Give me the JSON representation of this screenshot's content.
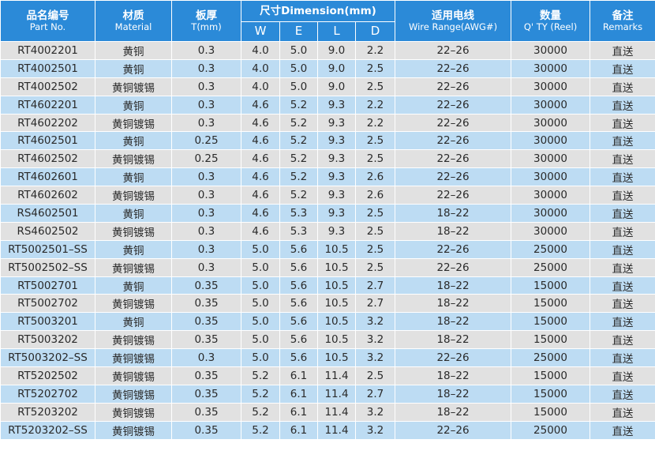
{
  "headers": {
    "part_no": {
      "zh": "品名编号",
      "en": "Part No."
    },
    "material": {
      "zh": "材质",
      "en": "Material"
    },
    "thickness": {
      "zh": "板厚",
      "en": "T(mm)"
    },
    "dimension": {
      "label": "尺寸Dimension(mm)",
      "sub": [
        "W",
        "E",
        "L",
        "D"
      ]
    },
    "wire_range": {
      "zh": "适用电线",
      "en": "Wire Range(AWG#)"
    },
    "qty": {
      "zh": "数量",
      "en": "Q' TY (Reel)"
    },
    "remarks": {
      "zh": "备注",
      "en": "Remarks"
    }
  },
  "colors": {
    "header_bg": "#2b8ad8",
    "row_gray": "#e1e1e1",
    "row_blue": "#bddcf3"
  },
  "rows": [
    [
      "RT4002201",
      "黄铜",
      "0.3",
      "4.0",
      "5.0",
      "9.0",
      "2.2",
      "22–26",
      "30000",
      "直送"
    ],
    [
      "RT4002501",
      "黄铜",
      "0.3",
      "4.0",
      "5.0",
      "9.0",
      "2.5",
      "22–26",
      "30000",
      "直送"
    ],
    [
      "RT4002502",
      "黄铜镀锡",
      "0.3",
      "4.0",
      "5.0",
      "9.0",
      "2.5",
      "22–26",
      "30000",
      "直送"
    ],
    [
      "RT4602201",
      "黄铜",
      "0.3",
      "4.6",
      "5.2",
      "9.3",
      "2.2",
      "22–26",
      "30000",
      "直送"
    ],
    [
      "RT4602202",
      "黄铜镀锡",
      "0.3",
      "4.6",
      "5.2",
      "9.3",
      "2.2",
      "22–26",
      "30000",
      "直送"
    ],
    [
      "RT4602501",
      "黄铜",
      "0.25",
      "4.6",
      "5.2",
      "9.3",
      "2.5",
      "22–26",
      "30000",
      "直送"
    ],
    [
      "RT4602502",
      "黄铜镀锡",
      "0.25",
      "4.6",
      "5.2",
      "9.3",
      "2.5",
      "22–26",
      "30000",
      "直送"
    ],
    [
      "RT4602601",
      "黄铜",
      "0.3",
      "4.6",
      "5.2",
      "9.3",
      "2.6",
      "22–26",
      "30000",
      "直送"
    ],
    [
      "RT4602602",
      "黄铜镀锡",
      "0.3",
      "4.6",
      "5.2",
      "9.3",
      "2.6",
      "22–26",
      "30000",
      "直送"
    ],
    [
      "RS4602501",
      "黄铜",
      "0.3",
      "4.6",
      "5.3",
      "9.3",
      "2.5",
      "18–22",
      "30000",
      "直送"
    ],
    [
      "RS4602502",
      "黄铜镀锡",
      "0.3",
      "4.6",
      "5.3",
      "9.3",
      "2.5",
      "18–22",
      "30000",
      "直送"
    ],
    [
      "RT5002501–SS",
      "黄铜",
      "0.3",
      "5.0",
      "5.6",
      "10.5",
      "2.5",
      "22–26",
      "25000",
      "直送"
    ],
    [
      "RT5002502–SS",
      "黄铜镀锡",
      "0.3",
      "5.0",
      "5.6",
      "10.5",
      "2.5",
      "22–26",
      "25000",
      "直送"
    ],
    [
      "RT5002701",
      "黄铜",
      "0.35",
      "5.0",
      "5.6",
      "10.5",
      "2.7",
      "18–22",
      "15000",
      "直送"
    ],
    [
      "RT5002702",
      "黄铜镀锡",
      "0.35",
      "5.0",
      "5.6",
      "10.5",
      "2.7",
      "18–22",
      "15000",
      "直送"
    ],
    [
      "RT5003201",
      "黄铜",
      "0.35",
      "5.0",
      "5.6",
      "10.5",
      "3.2",
      "18–22",
      "15000",
      "直送"
    ],
    [
      "RT5003202",
      "黄铜镀锡",
      "0.35",
      "5.0",
      "5.6",
      "10.5",
      "3.2",
      "18–22",
      "15000",
      "直送"
    ],
    [
      "RT5003202–SS",
      "黄铜镀锡",
      "0.3",
      "5.0",
      "5.6",
      "10.5",
      "3.2",
      "22–26",
      "25000",
      "直送"
    ],
    [
      "RT5202502",
      "黄铜镀锡",
      "0.35",
      "5.2",
      "6.1",
      "11.4",
      "2.5",
      "18–22",
      "15000",
      "直送"
    ],
    [
      "RT5202702",
      "黄铜镀锡",
      "0.35",
      "5.2",
      "6.1",
      "11.4",
      "2.7",
      "18–22",
      "15000",
      "直送"
    ],
    [
      "RT5203202",
      "黄铜镀锡",
      "0.35",
      "5.2",
      "6.1",
      "11.4",
      "3.2",
      "18–22",
      "15000",
      "直送"
    ],
    [
      "RT5203202–SS",
      "黄铜镀锡",
      "0.35",
      "5.2",
      "6.1",
      "11.4",
      "3.2",
      "22–26",
      "25000",
      "直送"
    ]
  ]
}
